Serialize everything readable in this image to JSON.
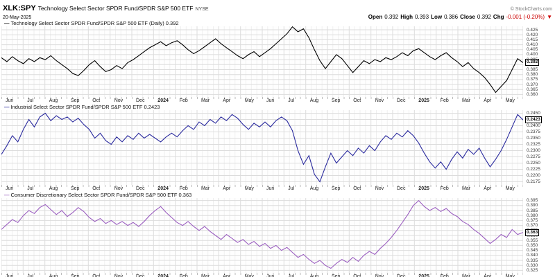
{
  "header": {
    "symbol": "XLK:SPY",
    "title": "Technology Select Sector SPDR Fund/SPDR S&P 500 ETF",
    "exchange": "NYSE",
    "date": "20-May-2025",
    "copyright": "© StockCharts.com",
    "quote": {
      "open_label": "Open",
      "open": "0.392",
      "high_label": "High",
      "high": "0.393",
      "low_label": "Low",
      "low": "0.386",
      "close_label": "Close",
      "close": "0.392",
      "chg_label": "Chg",
      "chg": "-0.001 (-0.20%)",
      "chg_dir": "▼"
    }
  },
  "x_labels": [
    "Jun",
    "Jul",
    "Aug",
    "Sep",
    "Oct",
    "Nov",
    "Dec",
    "2024",
    "Feb",
    "Mar",
    "Apr",
    "May",
    "Jun",
    "Jul",
    "Aug",
    "Sep",
    "Oct",
    "Nov",
    "Dec",
    "2025",
    "Feb",
    "Mar",
    "Apr",
    "May"
  ],
  "chart_data": [
    {
      "type": "line",
      "legend": "Technology Select Sector SPDR Fund/SPDR S&P 500 ETF (Daily) 0.392",
      "color": "#000000",
      "last_value": "0.392",
      "ylim": [
        0.3575,
        0.4285
      ],
      "y_ticks": [
        "0.425",
        "0.420",
        "0.415",
        "0.410",
        "0.405",
        "0.400",
        "0.395",
        "0.390",
        "0.385",
        "0.380",
        "0.375",
        "0.370",
        "0.365",
        "0.360"
      ],
      "values": [
        0.397,
        0.393,
        0.398,
        0.394,
        0.391,
        0.396,
        0.393,
        0.397,
        0.395,
        0.399,
        0.394,
        0.39,
        0.386,
        0.381,
        0.379,
        0.384,
        0.39,
        0.394,
        0.388,
        0.383,
        0.385,
        0.389,
        0.386,
        0.392,
        0.395,
        0.399,
        0.403,
        0.407,
        0.41,
        0.413,
        0.409,
        0.412,
        0.414,
        0.41,
        0.405,
        0.401,
        0.404,
        0.408,
        0.412,
        0.416,
        0.411,
        0.407,
        0.403,
        0.399,
        0.396,
        0.4,
        0.403,
        0.398,
        0.402,
        0.406,
        0.411,
        0.416,
        0.421,
        0.428,
        0.423,
        0.426,
        0.417,
        0.405,
        0.394,
        0.386,
        0.393,
        0.4,
        0.396,
        0.389,
        0.382,
        0.388,
        0.394,
        0.391,
        0.395,
        0.393,
        0.397,
        0.395,
        0.398,
        0.402,
        0.399,
        0.404,
        0.406,
        0.402,
        0.398,
        0.395,
        0.399,
        0.402,
        0.397,
        0.393,
        0.388,
        0.392,
        0.386,
        0.382,
        0.377,
        0.37,
        0.362,
        0.368,
        0.374,
        0.385,
        0.396,
        0.392
      ]
    },
    {
      "type": "line",
      "legend": "Industrial Select Sector SPDR Fund/SPDR S&P 500 ETF 0.2423",
      "color": "#2a2a9e",
      "last_value": "0.2423",
      "ylim": [
        0.21625,
        0.24625
      ],
      "y_ticks": [
        "0.2450",
        "0.2425",
        "0.2400",
        "0.2375",
        "0.2350",
        "0.2325",
        "0.2300",
        "0.2275",
        "0.2250",
        "0.2225",
        "0.2200",
        "0.2175"
      ],
      "values": [
        0.2285,
        0.232,
        0.236,
        0.2335,
        0.2385,
        0.2425,
        0.2395,
        0.2435,
        0.245,
        0.242,
        0.244,
        0.2425,
        0.2435,
        0.2415,
        0.243,
        0.2405,
        0.2385,
        0.235,
        0.237,
        0.234,
        0.2325,
        0.2355,
        0.2335,
        0.236,
        0.2345,
        0.237,
        0.235,
        0.2365,
        0.235,
        0.2335,
        0.2355,
        0.237,
        0.2355,
        0.238,
        0.24,
        0.2385,
        0.2415,
        0.24,
        0.2425,
        0.241,
        0.2435,
        0.242,
        0.2445,
        0.243,
        0.2405,
        0.2385,
        0.241,
        0.2395,
        0.2415,
        0.2395,
        0.242,
        0.2435,
        0.242,
        0.238,
        0.23,
        0.2245,
        0.228,
        0.2205,
        0.2175,
        0.2235,
        0.229,
        0.225,
        0.2275,
        0.23,
        0.228,
        0.231,
        0.229,
        0.232,
        0.23,
        0.2335,
        0.236,
        0.2345,
        0.237,
        0.2355,
        0.238,
        0.236,
        0.233,
        0.229,
        0.2255,
        0.223,
        0.2255,
        0.2225,
        0.2265,
        0.2295,
        0.227,
        0.2305,
        0.2285,
        0.231,
        0.227,
        0.2235,
        0.2265,
        0.23,
        0.2345,
        0.2395,
        0.2445,
        0.2423
      ]
    },
    {
      "type": "line",
      "legend": "Consumer Discretionary Select Sector SPDR Fund/SPDR S&P 500 ETF 0.363",
      "color": "#9b5fc0",
      "last_value": "0.363",
      "ylim": [
        0.3225,
        0.3975
      ],
      "y_ticks": [
        "0.395",
        "0.390",
        "0.385",
        "0.380",
        "0.375",
        "0.370",
        "0.365",
        "0.360",
        "0.355",
        "0.350",
        "0.345",
        "0.340",
        "0.335",
        "0.330",
        "0.325"
      ],
      "values": [
        0.366,
        0.371,
        0.376,
        0.373,
        0.38,
        0.385,
        0.382,
        0.388,
        0.391,
        0.386,
        0.381,
        0.385,
        0.379,
        0.383,
        0.388,
        0.384,
        0.378,
        0.374,
        0.377,
        0.372,
        0.375,
        0.371,
        0.374,
        0.37,
        0.373,
        0.369,
        0.374,
        0.38,
        0.385,
        0.389,
        0.383,
        0.378,
        0.373,
        0.37,
        0.374,
        0.369,
        0.365,
        0.369,
        0.364,
        0.36,
        0.356,
        0.361,
        0.357,
        0.353,
        0.356,
        0.351,
        0.354,
        0.349,
        0.352,
        0.347,
        0.35,
        0.345,
        0.348,
        0.343,
        0.338,
        0.341,
        0.336,
        0.332,
        0.335,
        0.33,
        0.327,
        0.332,
        0.336,
        0.333,
        0.338,
        0.334,
        0.34,
        0.344,
        0.341,
        0.347,
        0.352,
        0.358,
        0.365,
        0.373,
        0.381,
        0.39,
        0.395,
        0.389,
        0.385,
        0.388,
        0.384,
        0.387,
        0.382,
        0.379,
        0.374,
        0.371,
        0.366,
        0.362,
        0.357,
        0.352,
        0.356,
        0.361,
        0.358,
        0.366,
        0.361,
        0.363
      ]
    }
  ]
}
